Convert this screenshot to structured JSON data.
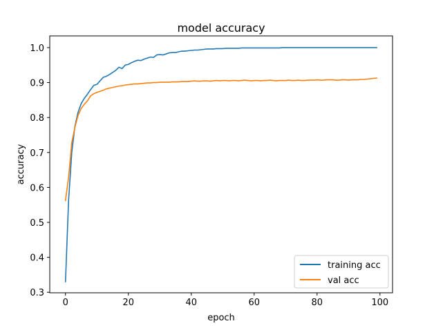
{
  "chart_data": {
    "type": "line",
    "title": "model accuracy",
    "xlabel": "epoch",
    "ylabel": "accuracy",
    "xlim": [
      -5,
      104
    ],
    "ylim": [
      0.2985,
      1.0335
    ],
    "xticks": [
      0,
      20,
      40,
      60,
      80,
      100
    ],
    "yticks": [
      0.3,
      0.4,
      0.5,
      0.6,
      0.7,
      0.8,
      0.9,
      1.0
    ],
    "xtick_labels": [
      "0",
      "20",
      "40",
      "60",
      "80",
      "100"
    ],
    "ytick_labels": [
      "0.3",
      "0.4",
      "0.5",
      "0.6",
      "0.7",
      "0.8",
      "0.9",
      "1.0"
    ],
    "grid": false,
    "legend": "lower-right",
    "series": [
      {
        "name": "training acc",
        "color": "#1f77b4",
        "values": [
          0.33,
          0.565,
          0.7,
          0.775,
          0.815,
          0.84,
          0.855,
          0.867,
          0.88,
          0.892,
          0.895,
          0.905,
          0.915,
          0.918,
          0.923,
          0.929,
          0.935,
          0.944,
          0.94,
          0.95,
          0.952,
          0.957,
          0.961,
          0.964,
          0.963,
          0.967,
          0.97,
          0.973,
          0.972,
          0.979,
          0.98,
          0.979,
          0.982,
          0.985,
          0.986,
          0.986,
          0.988,
          0.99,
          0.99,
          0.991,
          0.992,
          0.993,
          0.993,
          0.994,
          0.995,
          0.996,
          0.996,
          0.996,
          0.997,
          0.997,
          0.997,
          0.998,
          0.998,
          0.998,
          0.998,
          0.998,
          0.999,
          0.999,
          0.999,
          0.999,
          0.999,
          0.999,
          0.999,
          0.999,
          0.999,
          0.999,
          0.999,
          0.999,
          0.999,
          1.0,
          1.0,
          1.0,
          1.0,
          1.0,
          1.0,
          1.0,
          1.0,
          1.0,
          1.0,
          1.0,
          1.0,
          1.0,
          1.0,
          1.0,
          1.0,
          1.0,
          1.0,
          1.0,
          1.0,
          1.0,
          1.0,
          1.0,
          1.0,
          1.0,
          1.0,
          1.0,
          1.0,
          1.0,
          1.0,
          1.0
        ]
      },
      {
        "name": "val acc",
        "color": "#ff7f0e",
        "values": [
          0.562,
          0.63,
          0.728,
          0.772,
          0.806,
          0.826,
          0.838,
          0.848,
          0.862,
          0.868,
          0.872,
          0.875,
          0.878,
          0.882,
          0.884,
          0.886,
          0.888,
          0.89,
          0.891,
          0.893,
          0.894,
          0.895,
          0.896,
          0.896,
          0.897,
          0.898,
          0.899,
          0.899,
          0.9,
          0.9,
          0.901,
          0.901,
          0.901,
          0.901,
          0.902,
          0.902,
          0.902,
          0.903,
          0.903,
          0.903,
          0.904,
          0.905,
          0.904,
          0.904,
          0.905,
          0.905,
          0.904,
          0.905,
          0.906,
          0.905,
          0.906,
          0.906,
          0.905,
          0.906,
          0.906,
          0.905,
          0.906,
          0.907,
          0.906,
          0.905,
          0.906,
          0.906,
          0.905,
          0.906,
          0.906,
          0.907,
          0.906,
          0.905,
          0.906,
          0.906,
          0.906,
          0.907,
          0.906,
          0.906,
          0.907,
          0.906,
          0.906,
          0.907,
          0.907,
          0.907,
          0.908,
          0.907,
          0.907,
          0.908,
          0.908,
          0.908,
          0.907,
          0.907,
          0.908,
          0.908,
          0.907,
          0.908,
          0.908,
          0.908,
          0.909,
          0.909,
          0.91,
          0.911,
          0.912,
          0.913
        ]
      }
    ]
  }
}
